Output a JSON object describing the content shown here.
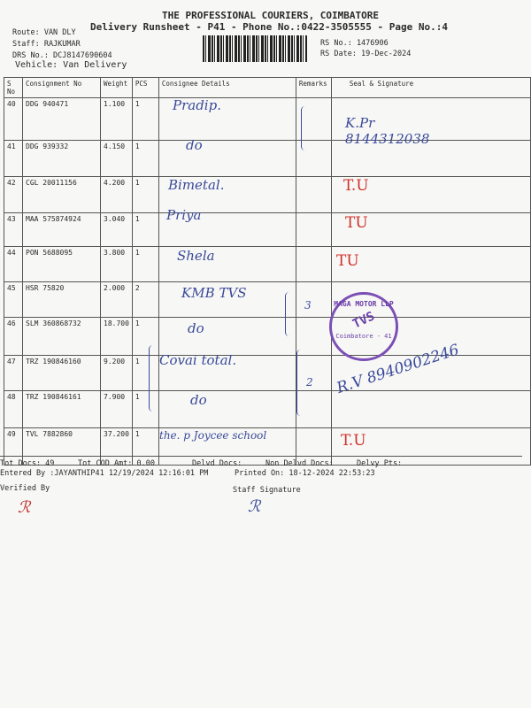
{
  "header": {
    "company": "THE PROFESSIONAL COURIERS, COIMBATORE",
    "runsheet": "Delivery Runsheet - P41 - Phone No.:0422-3505555 - Page No.:4",
    "route": "Route: VAN DLY",
    "staff": "Staff: RAJKUMAR",
    "drs_no": "DRS No.: DCJ8147690604",
    "vehicle": "Vehicle: Van Delivery",
    "rs_no": "RS No.: 1476906",
    "rs_date": "RS Date: 19-Dec-2024"
  },
  "table": {
    "columns": [
      "S No",
      "Consignment No",
      "Weight",
      "PCS",
      "Consignee Details",
      "Remarks",
      "Seal & Signature"
    ],
    "rows": [
      {
        "sno": "40",
        "consignment": "DDG 940471",
        "weight": "1.100",
        "pcs": "1",
        "consignee": "Pradip.",
        "sign": "K.Pr 8144312038"
      },
      {
        "sno": "41",
        "consignment": "DDG 939332",
        "weight": "4.150",
        "pcs": "1",
        "consignee": "do",
        "sign": ""
      },
      {
        "sno": "42",
        "consignment": "CGL 20011156",
        "weight": "4.200",
        "pcs": "1",
        "consignee": "Bimetal.",
        "sign": "T.U"
      },
      {
        "sno": "43",
        "consignment": "MAA 575874924",
        "weight": "3.040",
        "pcs": "1",
        "consignee": "Priya",
        "sign": "TU"
      },
      {
        "sno": "44",
        "consignment": "PON 5688095",
        "weight": "3.800",
        "pcs": "1",
        "consignee": "Shela",
        "sign": "TU"
      },
      {
        "sno": "45",
        "consignment": "HSR 75820",
        "weight": "2.000",
        "pcs": "2",
        "consignee": "KMB TVS",
        "sign": ""
      },
      {
        "sno": "46",
        "consignment": "SLM 360868732",
        "weight": "18.700",
        "pcs": "1",
        "consignee": "do",
        "sign": ""
      },
      {
        "sno": "47",
        "consignment": "TRZ 190846160",
        "weight": "9.200",
        "pcs": "1",
        "consignee": "Covai total.",
        "sign": ""
      },
      {
        "sno": "48",
        "consignment": "TRZ 190846161",
        "weight": "7.900",
        "pcs": "1",
        "consignee": "do",
        "sign": "R.V 8940902246"
      },
      {
        "sno": "49",
        "consignment": "TVL 7882860",
        "weight": "37.200",
        "pcs": "1",
        "consignee": "the. p Joycee school",
        "sign": "T.U"
      }
    ],
    "remarks_marks": [
      "3",
      "2"
    ]
  },
  "stamp": {
    "top": "MAGA MOTOR LLP",
    "center": "TVS",
    "bottom": "Coimbatore - 41"
  },
  "footer": {
    "tot_docs": "Tot Docs:  49",
    "tot_cod": "Tot COD Amt:    0.00",
    "delvd_docs": "Delvd Docs:",
    "non_delvd_docs": "Non Delvd Docs:",
    "delvy_pts": "Delvy Pts:",
    "entered_by": "Entered By :JAYANTHIP41 12/19/2024 12:16:01 PM",
    "printed_on": "Printed On: 18-12-2024 22:53:23",
    "verified_by": "Verified By",
    "staff_signature": "Staff Signature"
  },
  "colors": {
    "ink_blue": "#3a4a9a",
    "ink_red": "#d0302a",
    "stamp_purple": "#6a3fa8"
  }
}
